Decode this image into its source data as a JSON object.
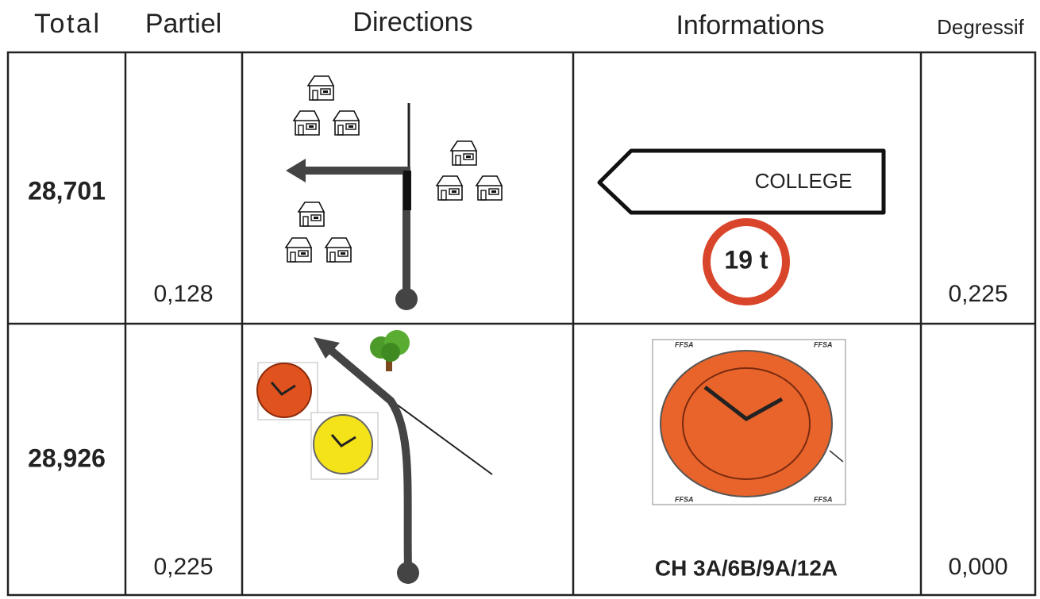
{
  "header": {
    "columns": [
      "Total",
      "Partiel",
      "Directions",
      "Informations",
      "Degressif"
    ]
  },
  "rows": [
    {
      "total": "28,701",
      "partiel": "0,128",
      "sign_text": "COLLEGE",
      "weight_limit": "19 t",
      "degressif": "0,225"
    },
    {
      "total": "28,926",
      "partiel": "0,225",
      "clock_brand": "FFSA",
      "info_caption": "CH 3A/6B/9A/12A",
      "degressif": "0,000"
    }
  ]
}
